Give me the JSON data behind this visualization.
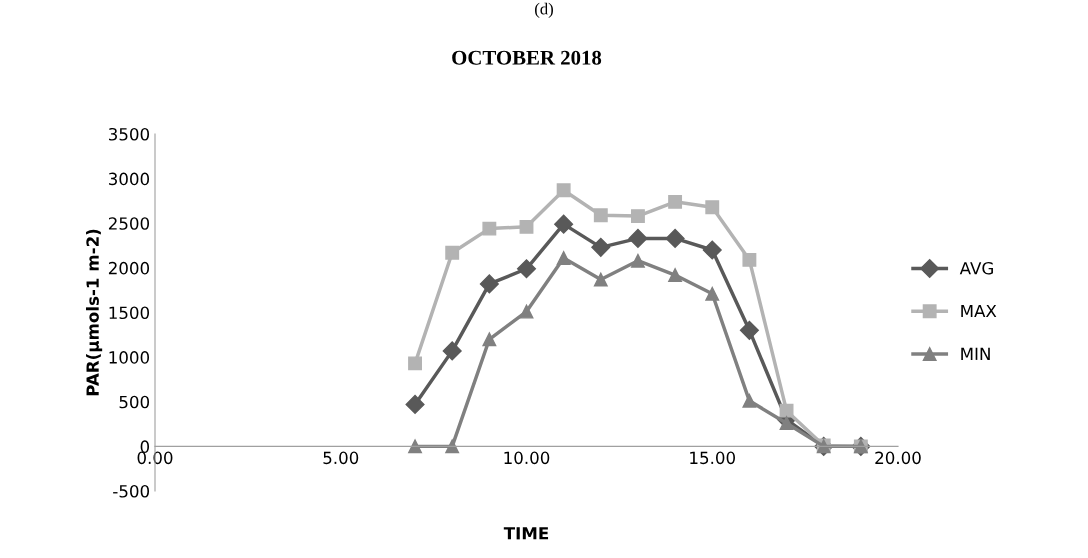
{
  "chart_data": {
    "type": "line",
    "title": "OCTOBER 2018",
    "xlabel": "TIME",
    "ylabel": "PAR(µmols-1 m-2)",
    "annotations": [
      "(d)"
    ],
    "x": [
      7,
      8,
      9,
      10,
      11,
      12,
      13,
      14,
      15,
      16,
      17,
      18,
      19
    ],
    "series": [
      {
        "name": "AVG",
        "color": "#595959",
        "marker": "diamond",
        "values": [
          470,
          1070,
          1820,
          1990,
          2490,
          2230,
          2330,
          2330,
          2200,
          1300,
          300,
          0,
          0
        ]
      },
      {
        "name": "MAX",
        "color": "#b3b3b3",
        "marker": "square",
        "values": [
          930,
          2170,
          2440,
          2460,
          2870,
          2590,
          2580,
          2740,
          2680,
          2090,
          400,
          10,
          0
        ]
      },
      {
        "name": "MIN",
        "color": "#808080",
        "marker": "triangle",
        "values": [
          0,
          0,
          1200,
          1510,
          2110,
          1870,
          2080,
          1920,
          1710,
          510,
          260,
          0,
          0
        ]
      }
    ],
    "xlim": [
      0,
      20
    ],
    "xticks": [
      {
        "value": 0,
        "label": "0.00"
      },
      {
        "value": 5,
        "label": "5.00"
      },
      {
        "value": 10,
        "label": "10.00"
      },
      {
        "value": 15,
        "label": "15.00"
      },
      {
        "value": 20,
        "label": "20.00"
      }
    ],
    "ylim": [
      -500,
      3500
    ],
    "yticks": [
      -500,
      0,
      500,
      1000,
      1500,
      2000,
      2500,
      3000,
      3500
    ],
    "grid": false,
    "legend": "right",
    "line_style": "solid"
  }
}
